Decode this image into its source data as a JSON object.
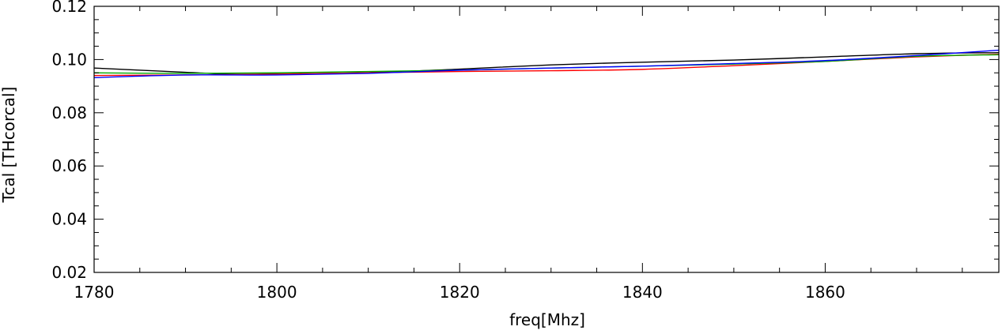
{
  "chart_data": {
    "type": "line",
    "title": "",
    "xlabel": "freq[Mhz]",
    "ylabel": "Tcal [THcorcal]",
    "xlim": [
      1780,
      1879
    ],
    "ylim": [
      0.02,
      0.12
    ],
    "x_ticks": [
      1780,
      1800,
      1820,
      1840,
      1860
    ],
    "x_tick_labels": [
      "1780",
      "1800",
      "1820",
      "1840",
      "1860"
    ],
    "y_ticks": [
      0.02,
      0.04,
      0.06,
      0.08,
      0.1,
      0.12
    ],
    "y_tick_labels": [
      "0.02",
      "0.04",
      "0.06",
      "0.08",
      "0.10",
      "0.12"
    ],
    "grid": false,
    "legend": "none",
    "series": [
      {
        "color": "#000000",
        "x": [
          1780,
          1790,
          1795,
          1800,
          1810,
          1820,
          1830,
          1840,
          1850,
          1860,
          1870,
          1879
        ],
        "y": [
          0.0968,
          0.0952,
          0.0945,
          0.0946,
          0.0951,
          0.0964,
          0.098,
          0.099,
          0.0998,
          0.101,
          0.1022,
          0.1026
        ]
      },
      {
        "color": "#ff0000",
        "x": [
          1780,
          1790,
          1800,
          1810,
          1820,
          1830,
          1840,
          1850,
          1860,
          1870,
          1879
        ],
        "y": [
          0.094,
          0.0942,
          0.0945,
          0.095,
          0.0955,
          0.0958,
          0.0963,
          0.0977,
          0.0993,
          0.101,
          0.102
        ]
      },
      {
        "color": "#00aa00",
        "x": [
          1780,
          1790,
          1800,
          1810,
          1820,
          1830,
          1840,
          1850,
          1860,
          1870,
          1879
        ],
        "y": [
          0.095,
          0.0948,
          0.095,
          0.0955,
          0.096,
          0.0968,
          0.0975,
          0.0983,
          0.0993,
          0.1012,
          0.1018
        ]
      },
      {
        "color": "#0000ff",
        "x": [
          1780,
          1790,
          1800,
          1810,
          1820,
          1830,
          1840,
          1850,
          1860,
          1870,
          1879
        ],
        "y": [
          0.0932,
          0.0942,
          0.0942,
          0.0948,
          0.096,
          0.0968,
          0.0975,
          0.0985,
          0.0996,
          0.1015,
          0.1035
        ]
      }
    ]
  }
}
